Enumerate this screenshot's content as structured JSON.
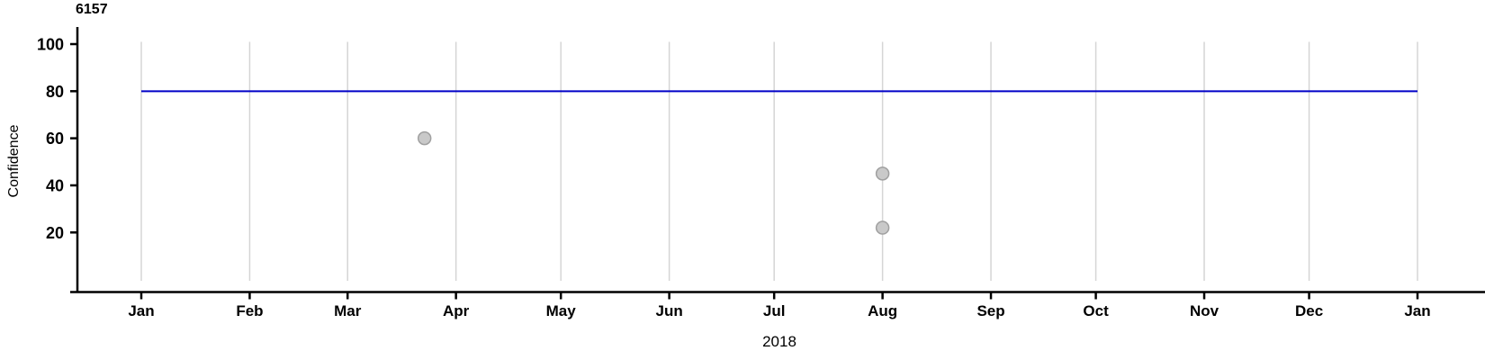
{
  "chart_data": {
    "type": "scatter",
    "title": "6157",
    "xlabel": "2018",
    "ylabel": "Confidence",
    "x_axis": {
      "unit": "date (months of 2018 through Jan 2019)",
      "tick_labels": [
        "Jan",
        "Feb",
        "Mar",
        "Apr",
        "May",
        "Jun",
        "Jul",
        "Aug",
        "Sep",
        "Oct",
        "Nov",
        "Dec",
        "Jan"
      ],
      "tick_day_of_year": [
        0,
        31,
        59,
        90,
        120,
        151,
        181,
        212,
        243,
        273,
        304,
        334,
        365
      ],
      "range_days": [
        0,
        365
      ]
    },
    "y_axis": {
      "tick_labels": [
        "20",
        "40",
        "60",
        "80",
        "100"
      ],
      "tick_values": [
        20,
        40,
        60,
        80,
        100
      ],
      "ylim": [
        0,
        101
      ]
    },
    "grid": {
      "vertical": true,
      "horizontal": false,
      "color": "#d5d5d5"
    },
    "legend": null,
    "reference_line": {
      "y": 80,
      "span_days": [
        0,
        365
      ],
      "color": "#0000c8"
    },
    "points": [
      {
        "date_approx": "2018-03-23",
        "day_of_year": 81,
        "value": 60
      },
      {
        "date_approx": "2018-08-01",
        "day_of_year": 212,
        "value": 45
      },
      {
        "date_approx": "2018-08-01",
        "day_of_year": 212,
        "value": 22
      }
    ],
    "point_style": {
      "fill": "#c9c9c9",
      "stroke": "#a0a0a0",
      "radius": 7
    },
    "axis_color": "#000000"
  }
}
